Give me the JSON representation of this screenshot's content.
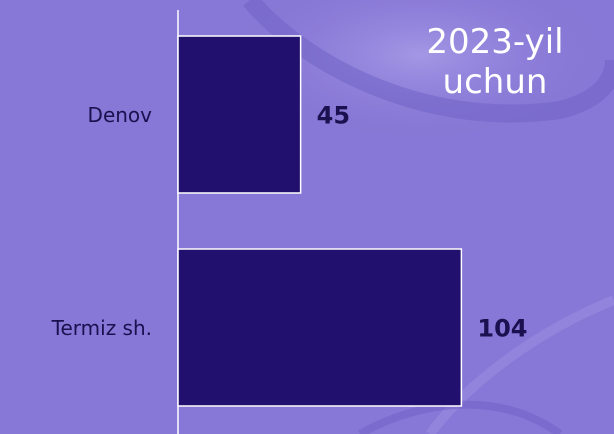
{
  "chart_data": {
    "type": "hbar",
    "title": "2023-yil uchun",
    "categories": [
      "Denov",
      "Termiz sh."
    ],
    "values": [
      45,
      104
    ],
    "color": "#22106e",
    "xlim": [
      0,
      160
    ]
  }
}
